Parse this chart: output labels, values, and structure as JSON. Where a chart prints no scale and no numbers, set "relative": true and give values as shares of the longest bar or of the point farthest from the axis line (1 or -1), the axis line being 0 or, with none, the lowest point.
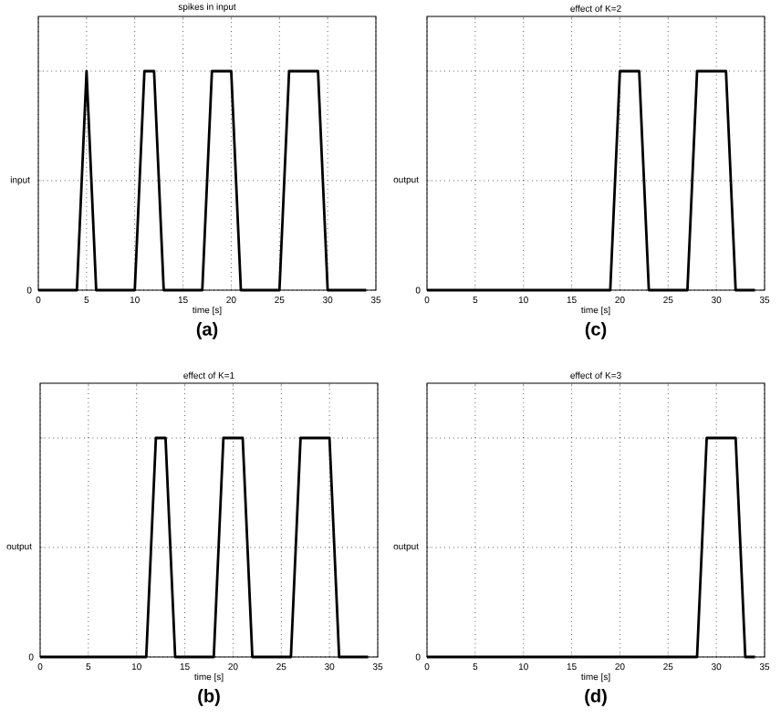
{
  "chart_data": [
    {
      "type": "line",
      "title": "spikes in input",
      "xlabel": "time [s]",
      "ylabel": "input",
      "relative": true,
      "grid": true,
      "xlim": [
        0,
        35
      ],
      "xticks": [
        0,
        5,
        10,
        15,
        20,
        25,
        30,
        35
      ],
      "annotations": [
        "0",
        "(a)"
      ],
      "x": [
        0,
        4,
        5,
        6,
        10,
        11,
        12,
        13,
        17,
        18,
        20,
        21,
        25,
        26,
        29,
        30,
        34
      ],
      "series": [
        {
          "color": "#000000",
          "values": [
            0,
            0,
            1,
            0,
            0,
            1,
            1,
            0,
            0,
            1,
            1,
            0,
            0,
            1,
            1,
            0,
            0
          ]
        }
      ]
    },
    {
      "type": "line",
      "title": "effect of K=2",
      "xlabel": "time [s]",
      "ylabel": "output",
      "relative": true,
      "grid": true,
      "xlim": [
        0,
        35
      ],
      "xticks": [
        0,
        5,
        10,
        15,
        20,
        25,
        30,
        35
      ],
      "annotations": [
        "0",
        "(c)"
      ],
      "x": [
        0,
        19,
        20,
        22,
        23,
        27,
        28,
        31,
        32,
        34
      ],
      "series": [
        {
          "color": "#000000",
          "values": [
            0,
            0,
            1,
            1,
            0,
            0,
            1,
            1,
            0,
            0
          ]
        }
      ]
    },
    {
      "type": "line",
      "title": "effect of K=1",
      "xlabel": "time [s]",
      "ylabel": "output",
      "relative": true,
      "grid": true,
      "xlim": [
        0,
        35
      ],
      "xticks": [
        0,
        5,
        10,
        15,
        20,
        25,
        30,
        35
      ],
      "annotations": [
        "0",
        "(b)"
      ],
      "x": [
        0,
        11,
        12,
        13,
        14,
        18,
        19,
        21,
        22,
        26,
        27,
        30,
        31,
        34
      ],
      "series": [
        {
          "color": "#000000",
          "values": [
            0,
            0,
            1,
            1,
            0,
            0,
            1,
            1,
            0,
            0,
            1,
            1,
            0,
            0
          ]
        }
      ]
    },
    {
      "type": "line",
      "title": "effect of K=3",
      "xlabel": "time [s]",
      "ylabel": "output",
      "relative": true,
      "grid": true,
      "xlim": [
        0,
        35
      ],
      "xticks": [
        0,
        5,
        10,
        15,
        20,
        25,
        30,
        35
      ],
      "annotations": [
        "0",
        "(d)"
      ],
      "x": [
        0,
        28,
        29,
        32,
        33,
        34
      ],
      "series": [
        {
          "color": "#000000",
          "values": [
            0,
            0,
            1,
            1,
            0,
            0
          ]
        }
      ]
    }
  ]
}
